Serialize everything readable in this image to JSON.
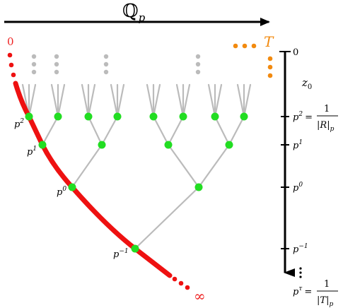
{
  "header": {
    "qp_label": "ℚ",
    "qp_sub": "p"
  },
  "ends": {
    "zero_label": "0",
    "infinity_label": "∞",
    "T_label": "T"
  },
  "node_labels": {
    "p2": {
      "base": "p",
      "exp": "2"
    },
    "p1": {
      "base": "p",
      "exp": "1"
    },
    "p0": {
      "base": "p",
      "exp": "0"
    },
    "pm1": {
      "base": "p",
      "exp": "−1"
    }
  },
  "axis": {
    "top_label": "0",
    "z_label": "z",
    "z_sub": "0",
    "ticks": [
      {
        "base": "p",
        "exp": "2",
        "eq": "=",
        "num": "1",
        "den_left": "|",
        "den_var": "R",
        "den_right": "|",
        "den_sub": "p"
      },
      {
        "base": "p",
        "exp": "1"
      },
      {
        "base": "p",
        "exp": "0"
      },
      {
        "base": "p",
        "exp": "−1"
      },
      {
        "base": "p",
        "exp": "τ",
        "eq": "=",
        "num": "1",
        "den_left": "|",
        "den_var": "T",
        "den_right": "|",
        "den_sub": "p"
      }
    ]
  },
  "colors": {
    "red": "#ee1111",
    "green": "#22dd22",
    "gray": "#bbbbbb",
    "orange": "#f28a0f",
    "black": "#000000",
    "red_text": "#ee2222"
  },
  "icons": {
    "right_arrow": "arrow-right-icon",
    "down_arrow": "arrow-down-icon"
  }
}
